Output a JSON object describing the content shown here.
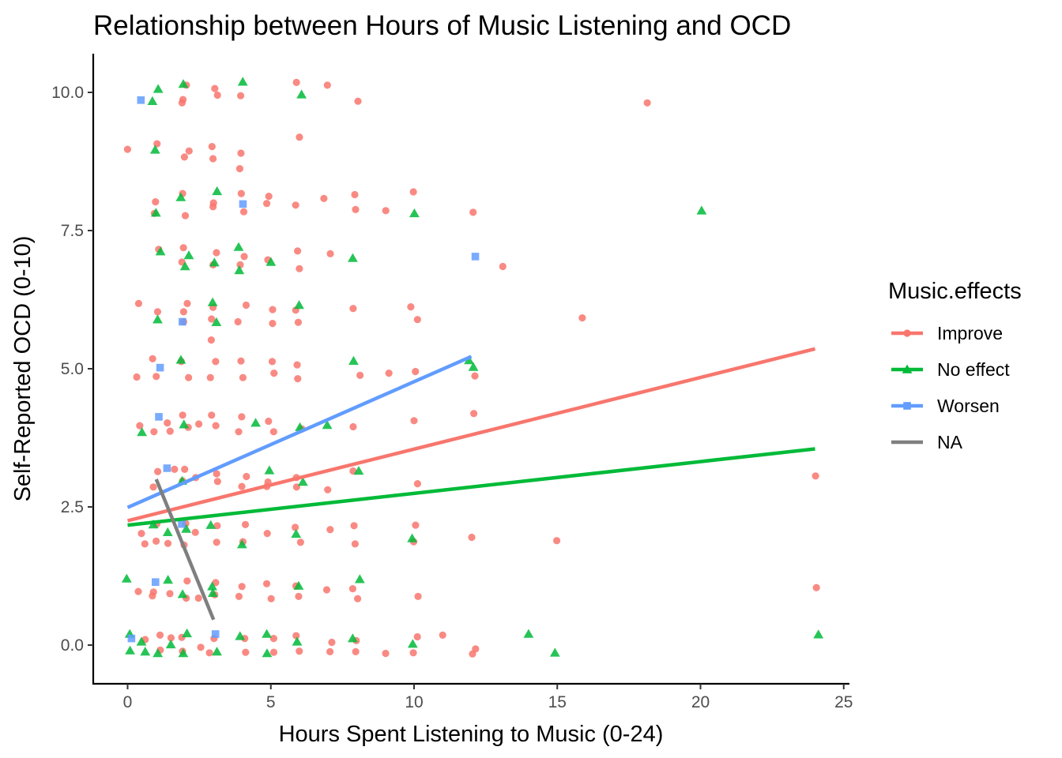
{
  "chart_data": {
    "type": "scatter",
    "title": "Relationship between Hours of Music Listening and OCD",
    "xlabel": "Hours Spent Listening to Music (0-24)",
    "ylabel": "Self-Reported OCD (0-10)",
    "xlim": [
      -1.2,
      25.2
    ],
    "ylim": [
      -0.7,
      10.7
    ],
    "xticks": [
      0,
      5,
      10,
      15,
      20,
      25
    ],
    "yticks": [
      0.0,
      2.5,
      5.0,
      7.5,
      10.0
    ],
    "xtick_labels": [
      "0",
      "5",
      "10",
      "15",
      "20",
      "25"
    ],
    "ytick_labels": [
      "0.0",
      "2.5",
      "5.0",
      "7.5",
      "10.0"
    ],
    "grid": false,
    "legend": {
      "title": "Music.effects",
      "position": "right",
      "entries": [
        "Improve",
        "No effect",
        "Worsen",
        "NA"
      ]
    },
    "series": [
      {
        "name": "Improve",
        "color": "#F8766D",
        "marker": "circle",
        "points": [
          [
            0,
            8.97
          ],
          [
            0.3,
            4.85
          ],
          [
            0.5,
            6.18
          ],
          [
            0.5,
            3.97
          ],
          [
            0.5,
            2.02
          ],
          [
            0.6,
            1.83
          ],
          [
            0.5,
            0.97
          ],
          [
            0.5,
            0.1
          ],
          [
            1,
            9.07
          ],
          [
            1,
            8.02
          ],
          [
            1,
            7.81
          ],
          [
            1,
            7.16
          ],
          [
            1,
            6.03
          ],
          [
            1,
            5.18
          ],
          [
            1,
            4.86
          ],
          [
            1,
            3.86
          ],
          [
            1,
            3.14
          ],
          [
            1,
            2.86
          ],
          [
            1,
            2.19
          ],
          [
            1,
            1.88
          ],
          [
            1,
            0.96
          ],
          [
            1,
            0.89
          ],
          [
            1,
            0.18
          ],
          [
            1,
            -0.09
          ],
          [
            1.5,
            4.02
          ],
          [
            1.5,
            3.87
          ],
          [
            1.5,
            3.18
          ],
          [
            1.5,
            1.84
          ],
          [
            1.5,
            0.93
          ],
          [
            1.5,
            0.13
          ],
          [
            2,
            10.13
          ],
          [
            2,
            9.87
          ],
          [
            2,
            9.81
          ],
          [
            2,
            8.94
          ],
          [
            2,
            8.83
          ],
          [
            2,
            8.17
          ],
          [
            2,
            7.77
          ],
          [
            2,
            7.19
          ],
          [
            2,
            6.93
          ],
          [
            2,
            6.18
          ],
          [
            2,
            6.03
          ],
          [
            2,
            5.85
          ],
          [
            2,
            5.13
          ],
          [
            2,
            4.84
          ],
          [
            2,
            4.16
          ],
          [
            2,
            3.94
          ],
          [
            2,
            3.18
          ],
          [
            2,
            2.97
          ],
          [
            2,
            2.2
          ],
          [
            2,
            1.81
          ],
          [
            2,
            1.16
          ],
          [
            2,
            0.85
          ],
          [
            2,
            0.14
          ],
          [
            2,
            -0.11
          ],
          [
            2.5,
            4.0
          ],
          [
            2.5,
            3.03
          ],
          [
            2.5,
            2.04
          ],
          [
            2.5,
            0.85
          ],
          [
            2.5,
            -0.04
          ],
          [
            3,
            10.07
          ],
          [
            3,
            9.95
          ],
          [
            3,
            9.02
          ],
          [
            3,
            8.8
          ],
          [
            3,
            8.0
          ],
          [
            3,
            7.93
          ],
          [
            3,
            7.1
          ],
          [
            3,
            6.88
          ],
          [
            3,
            6.11
          ],
          [
            3,
            5.9
          ],
          [
            3,
            5.52
          ],
          [
            3,
            5.13
          ],
          [
            3,
            4.84
          ],
          [
            3,
            4.16
          ],
          [
            3,
            3.97
          ],
          [
            3,
            3.1
          ],
          [
            3,
            2.96
          ],
          [
            3,
            2.16
          ],
          [
            3,
            1.86
          ],
          [
            3,
            1.13
          ],
          [
            3,
            0.91
          ],
          [
            3,
            0.12
          ],
          [
            3,
            -0.14
          ],
          [
            4,
            9.94
          ],
          [
            4,
            8.9
          ],
          [
            4,
            8.62
          ],
          [
            4,
            8.17
          ],
          [
            4,
            7.84
          ],
          [
            4,
            7.03
          ],
          [
            4,
            6.88
          ],
          [
            4,
            6.15
          ],
          [
            4,
            5.85
          ],
          [
            4,
            5.14
          ],
          [
            4,
            4.84
          ],
          [
            4,
            4.13
          ],
          [
            4,
            3.86
          ],
          [
            4,
            3.05
          ],
          [
            4,
            2.87
          ],
          [
            4,
            2.18
          ],
          [
            4,
            1.87
          ],
          [
            4,
            1.06
          ],
          [
            4,
            0.88
          ],
          [
            4,
            0.12
          ],
          [
            4,
            -0.13
          ],
          [
            5,
            8.12
          ],
          [
            5,
            7.99
          ],
          [
            5,
            6.97
          ],
          [
            5,
            6.07
          ],
          [
            5,
            5.82
          ],
          [
            5,
            5.13
          ],
          [
            5,
            4.92
          ],
          [
            5,
            4.05
          ],
          [
            5,
            3.86
          ],
          [
            5,
            2.95
          ],
          [
            5,
            2.87
          ],
          [
            5,
            2.02
          ],
          [
            5,
            1.11
          ],
          [
            5,
            0.84
          ],
          [
            5,
            0.12
          ],
          [
            5,
            -0.13
          ],
          [
            6,
            10.18
          ],
          [
            6,
            9.19
          ],
          [
            6,
            7.96
          ],
          [
            6,
            7.13
          ],
          [
            6,
            6.81
          ],
          [
            6,
            6.06
          ],
          [
            6,
            5.84
          ],
          [
            6,
            5.07
          ],
          [
            6,
            4.82
          ],
          [
            6,
            3.91
          ],
          [
            6,
            3.03
          ],
          [
            6,
            2.86
          ],
          [
            6,
            2.13
          ],
          [
            6,
            1.86
          ],
          [
            6,
            1.07
          ],
          [
            6,
            0.88
          ],
          [
            6,
            0.17
          ],
          [
            6,
            -0.11
          ],
          [
            7,
            10.13
          ],
          [
            7,
            8.08
          ],
          [
            7,
            7.08
          ],
          [
            7,
            2.81
          ],
          [
            7,
            2.09
          ],
          [
            7,
            1.0
          ],
          [
            7,
            0.05
          ],
          [
            7,
            -0.12
          ],
          [
            8,
            9.84
          ],
          [
            8,
            8.15
          ],
          [
            8,
            7.88
          ],
          [
            8,
            6.09
          ],
          [
            8,
            4.88
          ],
          [
            8,
            3.95
          ],
          [
            8,
            3.15
          ],
          [
            8,
            2.16
          ],
          [
            8,
            1.83
          ],
          [
            8,
            1.02
          ],
          [
            8,
            0.84
          ],
          [
            8,
            0.08
          ],
          [
            8,
            -0.12
          ],
          [
            9,
            7.86
          ],
          [
            9,
            4.92
          ],
          [
            9,
            -0.15
          ],
          [
            10,
            8.2
          ],
          [
            10,
            6.12
          ],
          [
            10,
            5.89
          ],
          [
            10,
            4.95
          ],
          [
            10,
            4.06
          ],
          [
            10,
            2.92
          ],
          [
            10,
            2.17
          ],
          [
            10,
            1.87
          ],
          [
            10,
            0.88
          ],
          [
            10,
            0.15
          ],
          [
            10,
            -0.14
          ],
          [
            11,
            0.18
          ],
          [
            12,
            7.83
          ],
          [
            12,
            4.19
          ],
          [
            12,
            4.87
          ],
          [
            12,
            1.95
          ],
          [
            12,
            -0.07
          ],
          [
            12,
            -0.16
          ],
          [
            13,
            6.85
          ],
          [
            15,
            1.89
          ],
          [
            16,
            5.92
          ],
          [
            18,
            9.81
          ],
          [
            24,
            3.06
          ],
          [
            24,
            1.04
          ]
        ]
      },
      {
        "name": "No effect",
        "color": "#00BA38",
        "marker": "triangle",
        "points": [
          [
            0,
            1.2
          ],
          [
            0,
            0.2
          ],
          [
            0,
            -0.1
          ],
          [
            0.5,
            3.85
          ],
          [
            0.5,
            0.06
          ],
          [
            0.5,
            -0.12
          ],
          [
            1,
            10.06
          ],
          [
            1,
            9.84
          ],
          [
            1,
            8.96
          ],
          [
            1,
            7.82
          ],
          [
            1,
            7.12
          ],
          [
            1,
            5.89
          ],
          [
            1,
            2.18
          ],
          [
            1,
            -0.15
          ],
          [
            1.5,
            2.04
          ],
          [
            1.5,
            1.18
          ],
          [
            1.5,
            0.01
          ],
          [
            2,
            10.15
          ],
          [
            2,
            8.1
          ],
          [
            2,
            7.05
          ],
          [
            2,
            6.85
          ],
          [
            2,
            5.16
          ],
          [
            2,
            3.99
          ],
          [
            2,
            2.97
          ],
          [
            2,
            2.1
          ],
          [
            2,
            0.92
          ],
          [
            2,
            0.21
          ],
          [
            2,
            -0.15
          ],
          [
            3,
            8.21
          ],
          [
            3,
            6.92
          ],
          [
            3,
            6.2
          ],
          [
            3,
            5.84
          ],
          [
            3,
            2.17
          ],
          [
            3,
            1.06
          ],
          [
            3,
            0.94
          ],
          [
            3,
            -0.12
          ],
          [
            4,
            10.19
          ],
          [
            4,
            7.2
          ],
          [
            4,
            6.78
          ],
          [
            4,
            1.82
          ],
          [
            4,
            0.16
          ],
          [
            4.5,
            4.02
          ],
          [
            5,
            6.93
          ],
          [
            5,
            3.16
          ],
          [
            5,
            0.2
          ],
          [
            5,
            -0.15
          ],
          [
            6,
            9.96
          ],
          [
            6,
            6.15
          ],
          [
            6,
            3.94
          ],
          [
            6,
            2.95
          ],
          [
            6,
            2.01
          ],
          [
            6,
            1.07
          ],
          [
            6,
            0.06
          ],
          [
            7,
            3.98
          ],
          [
            8,
            7.0
          ],
          [
            8,
            5.14
          ],
          [
            8,
            3.15
          ],
          [
            8,
            1.19
          ],
          [
            8,
            0.12
          ],
          [
            10,
            7.81
          ],
          [
            10,
            1.93
          ],
          [
            10,
            0.02
          ],
          [
            12,
            5.15
          ],
          [
            12,
            5.03
          ],
          [
            14,
            0.2
          ],
          [
            15,
            -0.14
          ],
          [
            20,
            7.86
          ],
          [
            24,
            0.19
          ]
        ]
      },
      {
        "name": "Worsen",
        "color": "#619CFF",
        "marker": "square",
        "points": [
          [
            0,
            0.12
          ],
          [
            0.5,
            9.86
          ],
          [
            1,
            5.02
          ],
          [
            1,
            4.13
          ],
          [
            1,
            1.14
          ],
          [
            1.5,
            3.2
          ],
          [
            2,
            5.85
          ],
          [
            2,
            2.19
          ],
          [
            3,
            0.2
          ],
          [
            4,
            7.98
          ],
          [
            12,
            7.03
          ]
        ]
      }
    ],
    "trend_lines": [
      {
        "name": "Improve",
        "color": "#F8766D",
        "x": [
          0,
          24
        ],
        "y": [
          2.25,
          5.36
        ]
      },
      {
        "name": "No effect",
        "color": "#00BA38",
        "x": [
          0,
          24
        ],
        "y": [
          2.17,
          3.55
        ]
      },
      {
        "name": "Worsen",
        "color": "#619CFF",
        "x": [
          0,
          12
        ],
        "y": [
          2.49,
          5.22
        ]
      },
      {
        "name": "NA",
        "color": "#7F7F7F",
        "x": [
          1,
          3
        ],
        "y": [
          3.0,
          0.46
        ]
      }
    ]
  }
}
